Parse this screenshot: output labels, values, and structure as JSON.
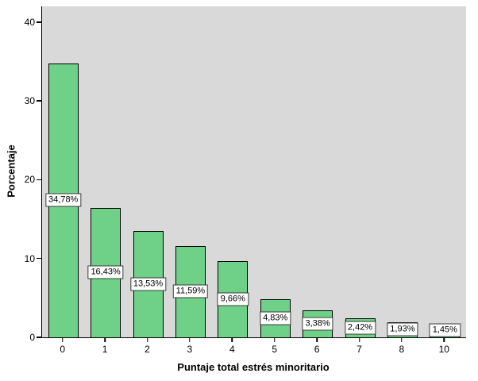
{
  "chart_data": {
    "type": "bar",
    "title": "",
    "categories": [
      "0",
      "1",
      "2",
      "3",
      "4",
      "5",
      "6",
      "7",
      "8",
      "10"
    ],
    "values": [
      34.78,
      16.43,
      13.53,
      11.59,
      9.66,
      4.83,
      3.38,
      2.42,
      1.93,
      1.45
    ],
    "value_labels": [
      "34,78%",
      "16,43%",
      "13,53%",
      "11,59%",
      "9,66%",
      "4,83%",
      "3,38%",
      "2,42%",
      "1,93%",
      "1,45%"
    ],
    "xlabel": "Puntaje total estrés minoritario",
    "ylabel": "Porcentaje",
    "ylim": [
      0,
      42
    ],
    "yticks": [
      0,
      10,
      20,
      30,
      40
    ],
    "grid": false,
    "legend": "none",
    "colors": {
      "bar_fill": "#6fd187",
      "bar_border": "#000000",
      "plot_background": "#d9d9d9",
      "figure_background": "#ffffff",
      "label_box_background": "#ffffff",
      "label_box_border": "#3a3a3a"
    }
  }
}
